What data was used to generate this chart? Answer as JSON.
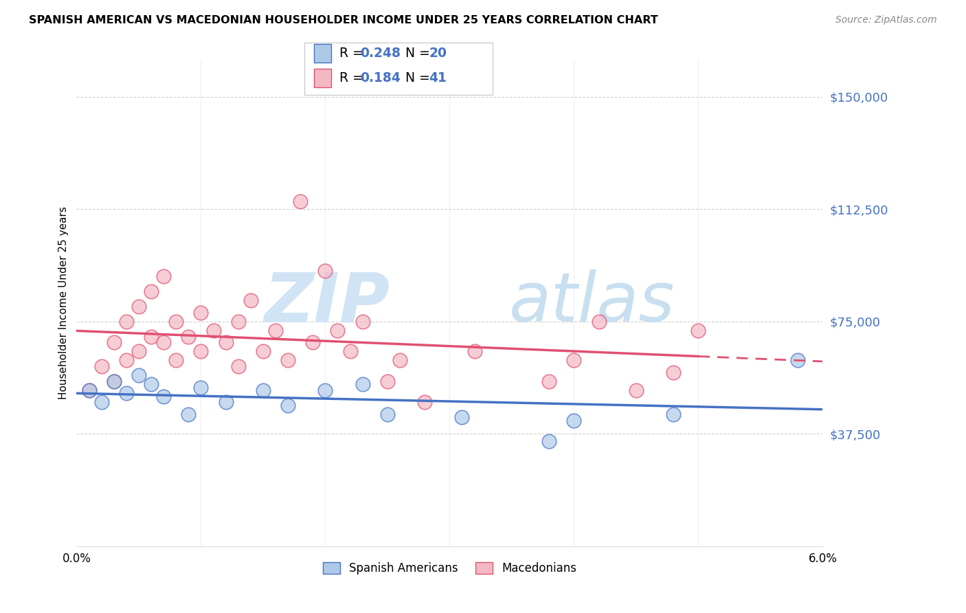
{
  "title": "SPANISH AMERICAN VS MACEDONIAN HOUSEHOLDER INCOME UNDER 25 YEARS CORRELATION CHART",
  "source": "Source: ZipAtlas.com",
  "ylabel": "Householder Income Under 25 years",
  "xlim": [
    0.0,
    0.06
  ],
  "ylim": [
    0,
    162500
  ],
  "yticks": [
    37500,
    75000,
    112500,
    150000
  ],
  "ytick_labels": [
    "$37,500",
    "$75,000",
    "$112,500",
    "$150,000"
  ],
  "xticks": [
    0.0,
    0.01,
    0.02,
    0.03,
    0.04,
    0.05,
    0.06
  ],
  "xtick_labels": [
    "0.0%",
    "",
    "",
    "",
    "",
    "",
    "6.0%"
  ],
  "legend_R1": "0.248",
  "legend_N1": "20",
  "legend_R2": "0.184",
  "legend_N2": "41",
  "color_blue": "#aec9e8",
  "color_pink": "#f4b8c4",
  "line_blue": "#4472c4",
  "line_pink": "#e05070",
  "text_blue": "#4472c4",
  "background": "#ffffff",
  "watermark_zip": "ZIP",
  "watermark_atlas": "atlas",
  "spanish_x": [
    0.001,
    0.002,
    0.003,
    0.004,
    0.005,
    0.006,
    0.007,
    0.009,
    0.01,
    0.012,
    0.015,
    0.017,
    0.02,
    0.023,
    0.025,
    0.031,
    0.038,
    0.04,
    0.048,
    0.058
  ],
  "spanish_y": [
    52000,
    48000,
    55000,
    51000,
    57000,
    54000,
    50000,
    44000,
    53000,
    48000,
    52000,
    47000,
    52000,
    54000,
    44000,
    43000,
    35000,
    42000,
    44000,
    62000
  ],
  "macedonian_x": [
    0.001,
    0.002,
    0.003,
    0.003,
    0.004,
    0.004,
    0.005,
    0.005,
    0.006,
    0.006,
    0.007,
    0.007,
    0.008,
    0.008,
    0.009,
    0.01,
    0.01,
    0.011,
    0.012,
    0.013,
    0.013,
    0.014,
    0.015,
    0.016,
    0.017,
    0.018,
    0.019,
    0.02,
    0.021,
    0.022,
    0.023,
    0.025,
    0.026,
    0.028,
    0.032,
    0.038,
    0.04,
    0.042,
    0.045,
    0.048,
    0.05
  ],
  "macedonian_y": [
    52000,
    60000,
    68000,
    55000,
    75000,
    62000,
    80000,
    65000,
    85000,
    70000,
    90000,
    68000,
    75000,
    62000,
    70000,
    78000,
    65000,
    72000,
    68000,
    75000,
    60000,
    82000,
    65000,
    72000,
    62000,
    115000,
    68000,
    92000,
    72000,
    65000,
    75000,
    55000,
    62000,
    48000,
    65000,
    55000,
    62000,
    75000,
    52000,
    58000,
    72000
  ]
}
